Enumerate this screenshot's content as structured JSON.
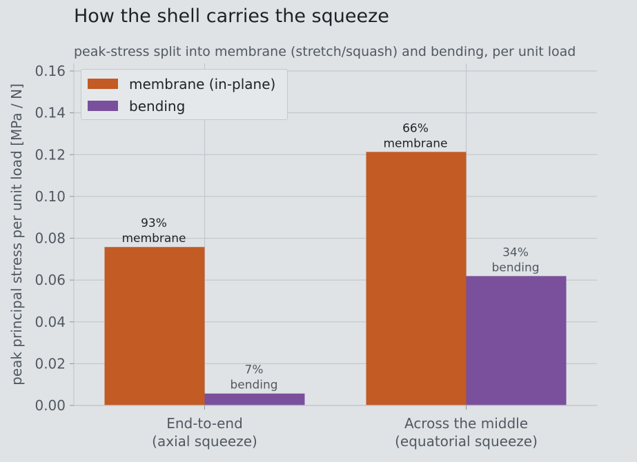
{
  "title": "How the shell carries the squeeze",
  "subtitle": "peak-stress split into membrane (stretch/squash) and bending, per unit load",
  "chart_data": {
    "type": "bar",
    "categories": [
      [
        "End-to-end",
        "(axial squeeze)"
      ],
      [
        "Across the middle",
        "(equatorial squeeze)"
      ]
    ],
    "series": [
      {
        "name": "membrane (in-plane)",
        "color": "#c25b24",
        "values": [
          0.0758,
          0.1213
        ],
        "labels": [
          [
            "93%",
            "membrane"
          ],
          [
            "66%",
            "membrane"
          ]
        ]
      },
      {
        "name": "bending",
        "color": "#7a509c",
        "values": [
          0.0057,
          0.0619
        ],
        "labels": [
          [
            "7%",
            "bending"
          ],
          [
            "34%",
            "bending"
          ]
        ]
      }
    ],
    "ylabel": "peak principal stress per unit load  [MPa / N]",
    "ylim": [
      0,
      0.16
    ],
    "yticks": [
      "0.00",
      "0.02",
      "0.04",
      "0.06",
      "0.08",
      "0.10",
      "0.12",
      "0.14",
      "0.16"
    ],
    "grid": true,
    "legend_position": "top-left"
  }
}
